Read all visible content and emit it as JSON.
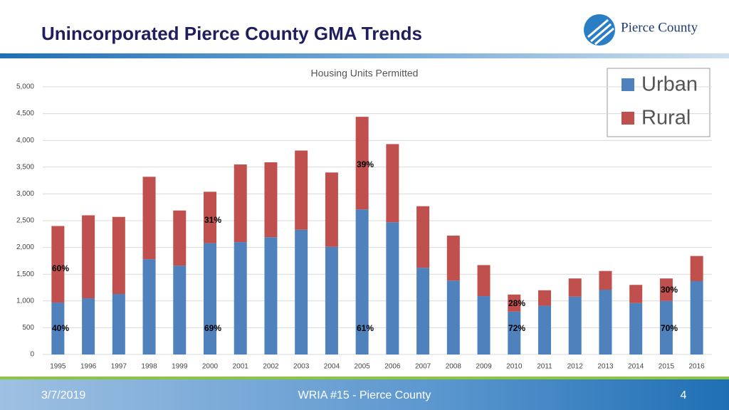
{
  "slide": {
    "title": "Unincorporated Pierce County GMA Trends",
    "logo": "Pierce County",
    "footer_date": "3/7/2019",
    "footer_text": "WRIA #15 - Pierce County",
    "page_number": "4"
  },
  "chart_data": {
    "type": "stacked_bar",
    "title": "Housing Units Permitted",
    "categories": [
      "1995",
      "1996",
      "1997",
      "1998",
      "1999",
      "2000",
      "2001",
      "2002",
      "2003",
      "2004",
      "2005",
      "2006",
      "2007",
      "2008",
      "2009",
      "2010",
      "2011",
      "2012",
      "2013",
      "2014",
      "2015",
      "2016"
    ],
    "series": [
      {
        "name": "Urban",
        "color": "#4f81bd",
        "values": [
          970,
          1050,
          1130,
          1780,
          1660,
          2080,
          2100,
          2190,
          2330,
          2010,
          2710,
          2470,
          1620,
          1380,
          1090,
          800,
          910,
          1080,
          1210,
          960,
          1000,
          1370
        ]
      },
      {
        "name": "Rural",
        "color": "#c0504d",
        "values": [
          1430,
          1550,
          1440,
          1540,
          1030,
          960,
          1450,
          1400,
          1480,
          1390,
          1730,
          1460,
          1150,
          840,
          580,
          320,
          290,
          340,
          350,
          340,
          420,
          470
        ]
      }
    ],
    "ylim": [
      0,
      5000
    ],
    "yticks": [
      0,
      500,
      {
        "value": 1000,
        "label": "1,000"
      },
      {
        "value": 1500,
        "label": "1,500"
      },
      {
        "value": 2000,
        "label": "2,000"
      },
      {
        "value": 2500,
        "label": "2,500"
      },
      {
        "value": 3000,
        "label": "3,000"
      },
      {
        "value": 3500,
        "label": "3,500"
      },
      {
        "value": 4000,
        "label": "4,000"
      },
      {
        "value": 4500,
        "label": "4,500"
      },
      {
        "value": 5000,
        "label": "5,000"
      }
    ],
    "grid": true,
    "legend": "top-right",
    "annotations": [
      "60%",
      "40%",
      "31%",
      "69%",
      "39%",
      "61%",
      "28%",
      "72%",
      "30%",
      "70%"
    ]
  }
}
